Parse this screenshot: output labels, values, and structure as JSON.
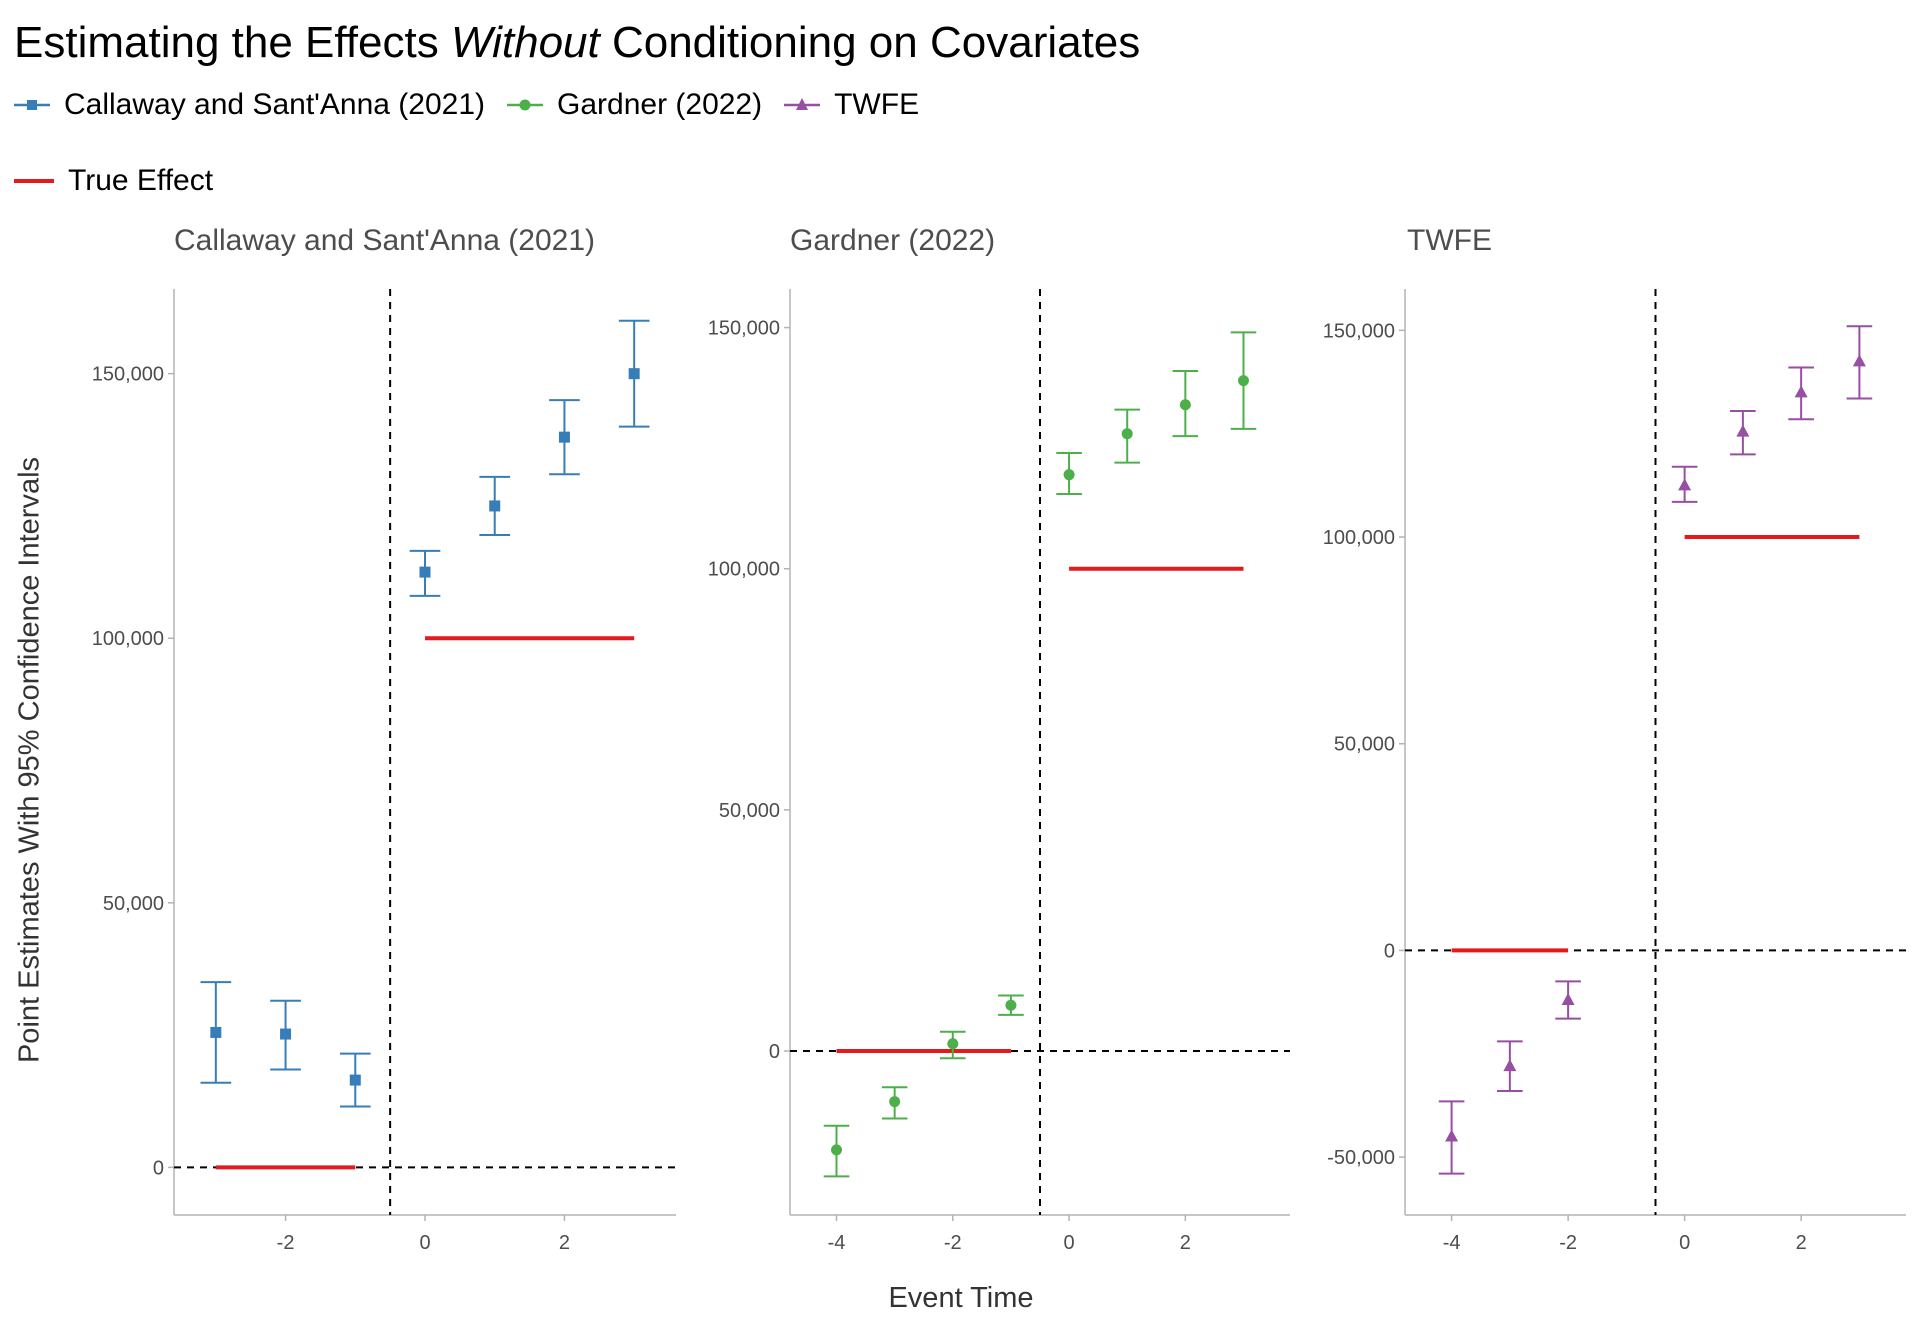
{
  "title": {
    "before": "Estimating the Effects ",
    "emphasis": "Without",
    "after": " Conditioning on Covariates"
  },
  "legend": {
    "series": [
      {
        "label": "Callaway and Sant'Anna (2021)",
        "color": "#377eb8",
        "marker": "square"
      },
      {
        "label": "Gardner (2022)",
        "color": "#4daf4a",
        "marker": "circle"
      },
      {
        "label": "TWFE",
        "color": "#984ea3",
        "marker": "triangle"
      }
    ],
    "true_effect": {
      "label": "True Effect",
      "color": "#e41a1c"
    }
  },
  "axis_titles": {
    "x": "Event Time",
    "y": "Point Estimates With 95% Confidence Intervals"
  },
  "chart_data": [
    {
      "type": "scatter",
      "title": "Callaway and Sant'Anna (2021)",
      "color": "#377eb8",
      "marker": "square",
      "xlim": [
        -3.6,
        3.6
      ],
      "ylim": [
        -9000,
        166000
      ],
      "x_ticks": [
        -2,
        0,
        2
      ],
      "x_tick_labels": [
        "-2",
        "0",
        "2"
      ],
      "y_ticks": [
        0,
        50000,
        100000,
        150000
      ],
      "y_tick_labels": [
        "0",
        "50,000",
        "100,000",
        "150,000"
      ],
      "reference_x": -0.5,
      "reference_y": 0,
      "points": [
        {
          "x": -3,
          "y": 25500,
          "lo": 16000,
          "hi": 35000
        },
        {
          "x": -2,
          "y": 25200,
          "lo": 18500,
          "hi": 31500
        },
        {
          "x": -1,
          "y": 16500,
          "lo": 11500,
          "hi": 21500
        },
        {
          "x": 0,
          "y": 112500,
          "lo": 108000,
          "hi": 116500
        },
        {
          "x": 1,
          "y": 125000,
          "lo": 119500,
          "hi": 130500
        },
        {
          "x": 2,
          "y": 138000,
          "lo": 131000,
          "hi": 145000
        },
        {
          "x": 3,
          "y": 150000,
          "lo": 140000,
          "hi": 160000
        }
      ],
      "true_effect": [
        {
          "x0": -3,
          "x1": -1,
          "y": 0
        },
        {
          "x0": 0,
          "x1": 3,
          "y": 100000
        }
      ]
    },
    {
      "type": "scatter",
      "title": "Gardner (2022)",
      "color": "#4daf4a",
      "marker": "circle",
      "xlim": [
        -4.8,
        3.8
      ],
      "ylim": [
        -34000,
        158000
      ],
      "x_ticks": [
        -4,
        -2,
        0,
        2
      ],
      "x_tick_labels": [
        "-4",
        "-2",
        "0",
        "2"
      ],
      "y_ticks": [
        0,
        50000,
        100000,
        150000
      ],
      "y_tick_labels": [
        "0",
        "50,000",
        "100,000",
        "150,000"
      ],
      "reference_x": -0.5,
      "reference_y": 0,
      "points": [
        {
          "x": -4,
          "y": -20500,
          "lo": -26000,
          "hi": -15500
        },
        {
          "x": -3,
          "y": -10500,
          "lo": -14000,
          "hi": -7500
        },
        {
          "x": -2,
          "y": 1500,
          "lo": -1500,
          "hi": 4000
        },
        {
          "x": -1,
          "y": 9500,
          "lo": 7500,
          "hi": 11500
        },
        {
          "x": 0,
          "y": 119500,
          "lo": 115500,
          "hi": 124000
        },
        {
          "x": 1,
          "y": 128000,
          "lo": 122000,
          "hi": 133000
        },
        {
          "x": 2,
          "y": 134000,
          "lo": 127500,
          "hi": 141000
        },
        {
          "x": 3,
          "y": 139000,
          "lo": 129000,
          "hi": 149000
        }
      ],
      "true_effect": [
        {
          "x0": -4,
          "x1": -1,
          "y": 0
        },
        {
          "x0": 0,
          "x1": 3,
          "y": 100000
        }
      ]
    },
    {
      "type": "scatter",
      "title": "TWFE",
      "color": "#984ea3",
      "marker": "triangle",
      "xlim": [
        -4.8,
        3.8
      ],
      "ylim": [
        -64000,
        160000
      ],
      "x_ticks": [
        -4,
        -2,
        0,
        2
      ],
      "x_tick_labels": [
        "-4",
        "-2",
        "0",
        "2"
      ],
      "y_ticks": [
        -50000,
        0,
        50000,
        100000,
        150000
      ],
      "y_tick_labels": [
        "-50,000",
        "0",
        "50,000",
        "100,000",
        "150,000"
      ],
      "reference_x": -0.5,
      "reference_y": 0,
      "points": [
        {
          "x": -4,
          "y": -45000,
          "lo": -54000,
          "hi": -36500
        },
        {
          "x": -3,
          "y": -28000,
          "lo": -34000,
          "hi": -22000
        },
        {
          "x": -2,
          "y": -12000,
          "lo": -16500,
          "hi": -7500
        },
        {
          "x": 0,
          "y": 112500,
          "lo": 108500,
          "hi": 117000
        },
        {
          "x": 1,
          "y": 125500,
          "lo": 120000,
          "hi": 130500
        },
        {
          "x": 2,
          "y": 135000,
          "lo": 128500,
          "hi": 141000
        },
        {
          "x": 3,
          "y": 142500,
          "lo": 133500,
          "hi": 151000
        }
      ],
      "true_effect": [
        {
          "x0": -4,
          "x1": -2,
          "y": 0
        },
        {
          "x0": 0,
          "x1": 3,
          "y": 100000
        }
      ]
    }
  ]
}
